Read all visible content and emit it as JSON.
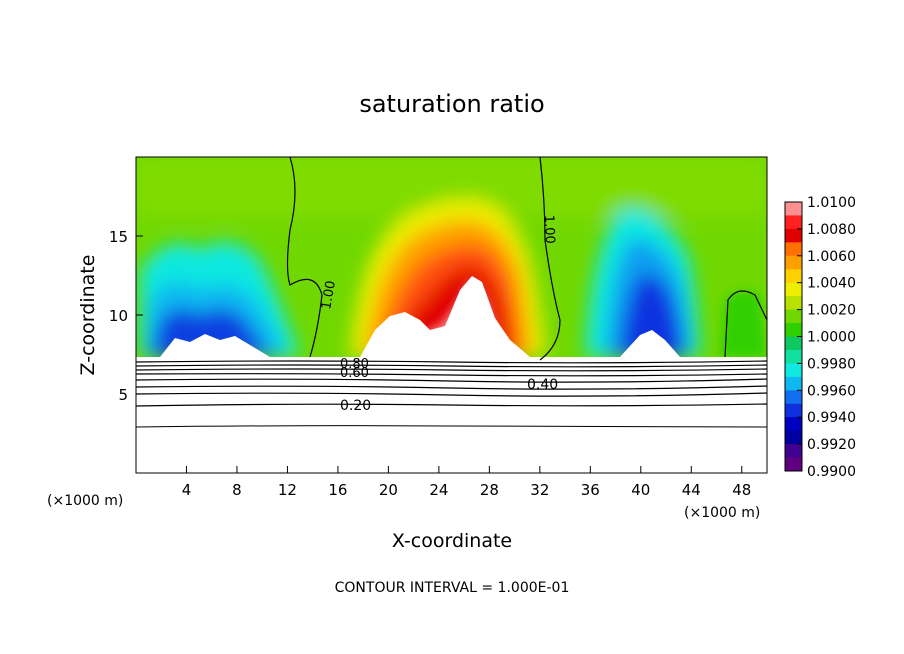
{
  "chart_data": {
    "type": "heatmap",
    "title": "saturation ratio",
    "xlabel": "X-coordinate",
    "ylabel": "Z-coordinate",
    "x_unit_left": "(×1000 m)",
    "x_unit_right": "(×1000 m)",
    "xlim": [
      0,
      50
    ],
    "ylim": [
      0,
      20
    ],
    "xticks": [
      4,
      8,
      12,
      16,
      20,
      24,
      28,
      32,
      36,
      40,
      44,
      48
    ],
    "yticks": [
      5,
      10,
      15
    ],
    "colorbar": {
      "labels": [
        "1.0100",
        "1.0080",
        "1.0060",
        "1.0040",
        "1.0020",
        "1.0000",
        "0.9980",
        "0.9960",
        "0.9940",
        "0.9920",
        "0.9900"
      ],
      "colors": [
        "#ff9090",
        "#ff2020",
        "#e00000",
        "#ff7000",
        "#ffa000",
        "#ffd000",
        "#eeee00",
        "#b8e000",
        "#70d800",
        "#30d000",
        "#10c860",
        "#10e0a0",
        "#10e8e0",
        "#10b8f0",
        "#1070f0",
        "#1030e0",
        "#0000c0",
        "#0000a0",
        "#400090",
        "#600080"
      ]
    },
    "contour_labels": [
      "1.00",
      "1.00",
      "0.80",
      "0.60",
      "0.40",
      "0.20"
    ],
    "footer": "CONTOUR INTERVAL = 1.000E-01",
    "grid": false
  }
}
